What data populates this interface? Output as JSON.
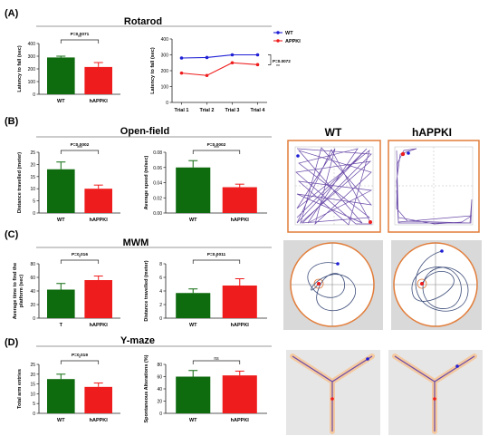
{
  "colors": {
    "wt": "#0e6b0e",
    "happki": "#ee1c1c",
    "wt_line": "#1f1fd6",
    "trace": "#6a4aa8",
    "arena": "#e27d3a",
    "axis": "#222222"
  },
  "panels": [
    {
      "letter": "(A)",
      "title": "Rotarod"
    },
    {
      "letter": "(B)",
      "title": "Open-field"
    },
    {
      "letter": "(C)",
      "title": "MWM"
    },
    {
      "letter": "(D)",
      "title": "Y-maze"
    }
  ],
  "track_headers": {
    "wt": "WT",
    "happki": "hAPPKI"
  },
  "chart_data": [
    {
      "type": "bar",
      "ylabel": "Latency to fall (sec)",
      "categories": [
        "WT",
        "hAPPKI"
      ],
      "values": [
        290,
        215
      ],
      "errors": [
        10,
        35
      ],
      "ylim": [
        0,
        400
      ],
      "yticks": [
        0,
        100,
        200,
        300,
        400
      ],
      "sig": {
        "p": "P=0.0071",
        "stars": "**"
      }
    },
    {
      "type": "line",
      "ylabel": "Latency to fall (sec)",
      "categories": [
        "Trial 1",
        "Trial 2",
        "Trial 3",
        "Trial 4"
      ],
      "ylim": [
        0,
        400
      ],
      "yticks": [
        0,
        100,
        200,
        300,
        400
      ],
      "series": [
        {
          "name": "WT",
          "values": [
            280,
            283,
            300,
            300
          ]
        },
        {
          "name": "APPKI",
          "values": [
            185,
            170,
            250,
            238
          ]
        }
      ],
      "sig": {
        "p": "P=0.0072",
        "stars": "**"
      }
    },
    {
      "type": "bar",
      "ylabel": "Distance travelled (meter)",
      "categories": [
        "WT",
        "hAPPKI"
      ],
      "values": [
        18,
        10
      ],
      "errors": [
        3,
        1.5
      ],
      "ylim": [
        0,
        25
      ],
      "yticks": [
        0,
        5,
        10,
        15,
        20,
        25
      ],
      "sig": {
        "p": "P=0.0002",
        "stars": "***"
      }
    },
    {
      "type": "bar",
      "ylabel": "Average speed (m/sec)",
      "categories": [
        "WT",
        "hAPPKI"
      ],
      "values": [
        0.06,
        0.034
      ],
      "errors": [
        0.009,
        0.004
      ],
      "ylim": [
        0,
        0.08
      ],
      "yticks": [
        "0.00",
        "0.02",
        "0.04",
        "0.06",
        "0.08"
      ],
      "sig": {
        "p": "P=0.0002",
        "stars": "***"
      }
    },
    {
      "type": "bar",
      "ylabel": "Average time to find the platform (sec)",
      "categories": [
        "T",
        "hAPPKI"
      ],
      "values": [
        42,
        56
      ],
      "errors": [
        9,
        6
      ],
      "ylim": [
        0,
        80
      ],
      "yticks": [
        0,
        20,
        40,
        60,
        80
      ],
      "sig": {
        "p": "P=0.016",
        "stars": "*"
      }
    },
    {
      "type": "bar",
      "ylabel": "Distance travelled (meter)",
      "categories": [
        "WT",
        "hAPPKI"
      ],
      "values": [
        3.7,
        4.8
      ],
      "errors": [
        0.6,
        1.0
      ],
      "ylim": [
        0,
        8
      ],
      "yticks": [
        0,
        2,
        4,
        6,
        8
      ],
      "sig": {
        "p": "P=0.0011",
        "stars": "*"
      }
    },
    {
      "type": "bar",
      "ylabel": "Total arm entries",
      "categories": [
        "WT",
        "hAPPKI"
      ],
      "values": [
        17.5,
        13.5
      ],
      "errors": [
        2.5,
        2.0
      ],
      "ylim": [
        0,
        25
      ],
      "yticks": [
        0,
        5,
        10,
        15,
        20,
        25
      ],
      "sig": {
        "p": "P=0.019",
        "stars": "*"
      }
    },
    {
      "type": "bar",
      "ylabel": "Spontaneous Alterations (%)",
      "categories": [
        "WT",
        "hAPPKI"
      ],
      "values": [
        60,
        62
      ],
      "errors": [
        10,
        7
      ],
      "ylim": [
        0,
        80
      ],
      "yticks": [
        0,
        20,
        40,
        60,
        80
      ],
      "sig": {
        "p": "",
        "stars": "ns"
      }
    }
  ]
}
